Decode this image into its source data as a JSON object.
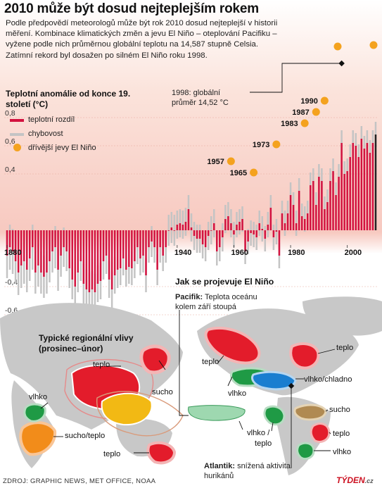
{
  "headline": "2010 může být dosud nejteplejším rokem",
  "intro": "Podle předpovědí meteorologů může být rok 2010 dosud nejteplejší v historii měření. Kombinace klimatických změn a jevu El Niño – oteplování Pacifiku – vyžene podle nich průměrnou globální teplotu na 14,587 stupně Celsia. Zatímní rekord byl dosažen po silném El Niño roku 1998.",
  "record_note": {
    "line1": "1998: globální",
    "line2": "průměr 14,52 °C"
  },
  "colors": {
    "anomaly": "#d3123f",
    "error": "#c4c4c4",
    "el_nino": "#f4a21e",
    "land_map": "#c9c9c9",
    "sea": "#ffffff"
  },
  "chart_data": {
    "type": "bar",
    "ylabel": "Teplotní anomálie od konce 19. století (°C)",
    "ylim": [
      -0.7,
      0.9
    ],
    "y_ticks": [
      "0,8",
      "0,6",
      "0,4",
      "-0,4",
      "-0,6"
    ],
    "x_ticks": [
      "1880",
      "1940",
      "1960",
      "1980",
      "2000"
    ],
    "legend": [
      "teplotní rozdíl",
      "chybovost",
      "dřívější jevy El Niño"
    ],
    "el_nino_events": [
      {
        "year": 1957,
        "label": "1957",
        "y": 0.49
      },
      {
        "year": 1965,
        "label": "1965",
        "y": 0.41
      },
      {
        "year": 1973,
        "label": "1973",
        "y": 0.61
      },
      {
        "year": 1983,
        "label": "1983",
        "y": 0.76
      },
      {
        "year": 1987,
        "label": "1987",
        "y": 0.84
      },
      {
        "year": 1990,
        "label": "1990",
        "y": 0.92
      }
    ],
    "years_start": 1880,
    "years_end": 2010,
    "anomaly": [
      -0.18,
      -0.12,
      -0.15,
      -0.22,
      -0.3,
      -0.25,
      -0.22,
      -0.28,
      -0.2,
      -0.12,
      -0.3,
      -0.25,
      -0.3,
      -0.33,
      -0.3,
      -0.22,
      -0.15,
      -0.12,
      -0.28,
      -0.18,
      -0.12,
      -0.15,
      -0.27,
      -0.35,
      -0.4,
      -0.3,
      -0.22,
      -0.38,
      -0.42,
      -0.44,
      -0.42,
      -0.44,
      -0.38,
      -0.36,
      -0.22,
      -0.18,
      -0.35,
      -0.42,
      -0.32,
      -0.28,
      -0.27,
      -0.2,
      -0.28,
      -0.26,
      -0.27,
      -0.22,
      -0.12,
      -0.2,
      -0.18,
      -0.32,
      -0.12,
      -0.08,
      -0.12,
      -0.28,
      -0.12,
      -0.18,
      -0.12,
      0.0,
      0.02,
      0.0,
      0.04,
      0.05,
      0.04,
      0.06,
      0.15,
      0.02,
      -0.04,
      -0.06,
      -0.06,
      -0.1,
      -0.12,
      -0.04,
      0.0,
      0.05,
      -0.15,
      -0.12,
      -0.05,
      0.08,
      0.1,
      0.05,
      -0.03,
      0.04,
      0.06,
      0.08,
      -0.15,
      -0.08,
      -0.02,
      -0.03,
      -0.05,
      0.05,
      0.01,
      -0.06,
      0.04,
      0.16,
      -0.05,
      -0.01,
      -0.18,
      0.12,
      0.05,
      0.12,
      0.25,
      0.18,
      0.05,
      0.28,
      0.1,
      0.08,
      0.12,
      0.32,
      0.35,
      0.18,
      0.38,
      0.35,
      0.15,
      0.2,
      0.35,
      0.42,
      0.25,
      0.38,
      0.62,
      0.4,
      0.42,
      0.52,
      0.62,
      0.6,
      0.52,
      0.65,
      0.58,
      0.62,
      0.55,
      0.62,
      0.68
    ],
    "error": [
      0.16,
      0.16,
      0.16,
      0.16,
      0.16,
      0.16,
      0.16,
      0.16,
      0.16,
      0.16,
      0.15,
      0.15,
      0.15,
      0.15,
      0.15,
      0.15,
      0.15,
      0.15,
      0.15,
      0.15,
      0.14,
      0.14,
      0.14,
      0.14,
      0.14,
      0.14,
      0.14,
      0.14,
      0.14,
      0.14,
      0.13,
      0.13,
      0.13,
      0.13,
      0.13,
      0.13,
      0.13,
      0.13,
      0.13,
      0.13,
      0.12,
      0.12,
      0.12,
      0.12,
      0.12,
      0.12,
      0.12,
      0.12,
      0.12,
      0.12,
      0.11,
      0.11,
      0.11,
      0.11,
      0.11,
      0.11,
      0.11,
      0.11,
      0.11,
      0.11,
      0.1,
      0.1,
      0.1,
      0.1,
      0.1,
      0.1,
      0.1,
      0.1,
      0.1,
      0.1,
      0.1,
      0.1,
      0.1,
      0.1,
      0.1,
      0.1,
      0.1,
      0.1,
      0.1,
      0.1,
      0.09,
      0.09,
      0.09,
      0.09,
      0.09,
      0.09,
      0.09,
      0.09,
      0.09,
      0.09,
      0.09,
      0.09,
      0.09,
      0.09,
      0.09,
      0.09,
      0.09,
      0.09,
      0.09,
      0.09,
      0.09,
      0.09,
      0.09,
      0.09,
      0.09,
      0.09,
      0.09,
      0.09,
      0.09,
      0.09,
      0.09,
      0.09,
      0.09,
      0.09,
      0.09,
      0.09,
      0.09,
      0.09,
      0.09,
      0.09,
      0.09,
      0.09,
      0.09,
      0.09,
      0.09,
      0.09,
      0.09,
      0.09,
      0.09,
      0.09,
      0.09
    ],
    "record_year": 1998
  },
  "map": {
    "title": "Jak se projevuje El Niño",
    "subtitle_line1": "Typické regionální vlivy",
    "subtitle_line2": "(prosinec–únor)",
    "pacific_bold": "Pacifik:",
    "pacific_text": "Teplota oceánu kolem září stoupá",
    "atlantic_bold": "Atlantik:",
    "atlantic_text": "snížená aktivita hurikánů",
    "labels": {
      "teplo_asia": "teplo",
      "teplo_japan": "teplo",
      "sucho_indonesia": "sucho",
      "vlhko_africa": "vlhko",
      "sucho_teplo_africa": "sucho/teplo",
      "teplo_australia": "teplo",
      "teplo_alaska": "teplo",
      "teplo_canada": "teplo",
      "vlhko_usa": "vlhko",
      "vlhko_chladno": "vlhko/chladno",
      "vlhko_teplo_1": "vlhko /",
      "vlhko_teplo_2": "teplo",
      "sucho_brazil": "sucho",
      "teplo_sa": "teplo",
      "vlhko_sa": "vlhko"
    }
  },
  "source": "ZDROJ: GRAPHIC NEWS, MET OFFICE, NOAA",
  "brand": "TÝDEN",
  "brand_suffix": ".cz"
}
